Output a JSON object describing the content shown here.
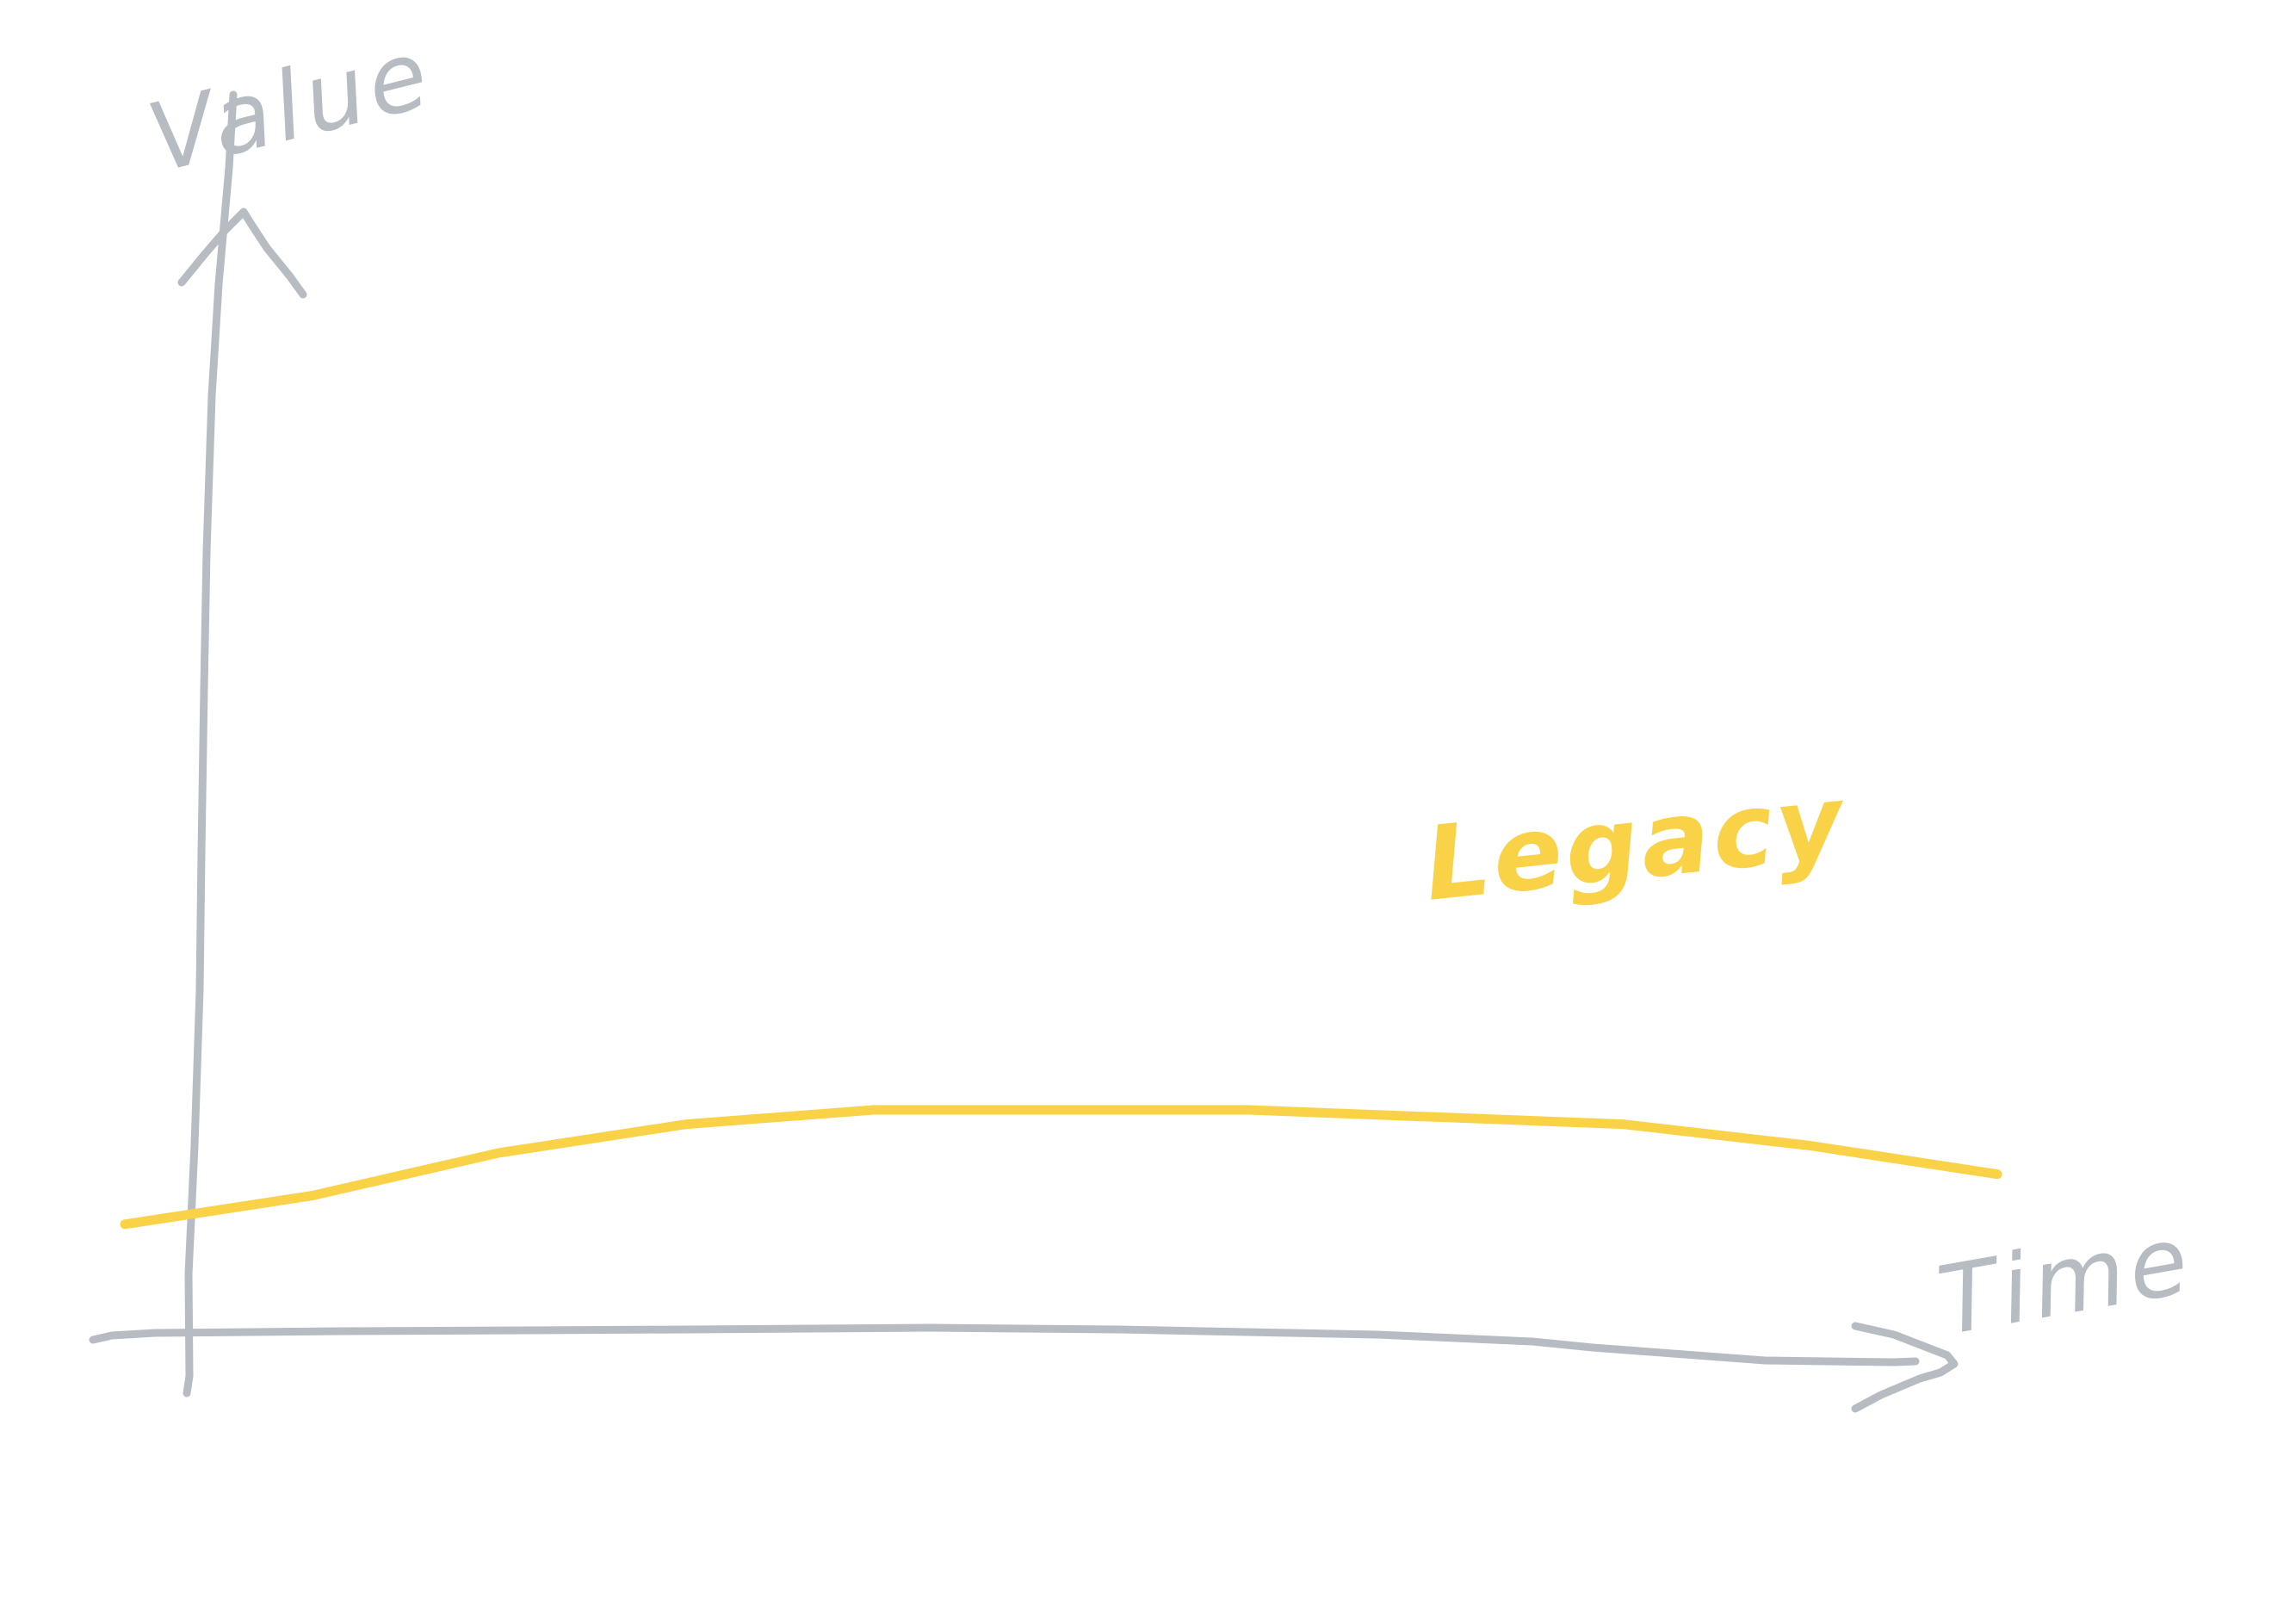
{
  "colors": {
    "axis": "#b7bcc2",
    "series": "#f9d247",
    "background": "#ffffff"
  },
  "chart_data": {
    "type": "line",
    "title": "",
    "xlabel": "Time",
    "ylabel": "Value",
    "grid": false,
    "legend": "none",
    "xlim": [
      0,
      100
    ],
    "ylim": [
      0,
      100
    ],
    "series": [
      {
        "name": "Legacy",
        "x": [
          0,
          10,
          20,
          30,
          40,
          50,
          60,
          70,
          80,
          90,
          100
        ],
        "y": [
          27,
          29,
          32,
          34,
          35,
          35,
          35,
          34.5,
          34,
          32.5,
          30.5
        ]
      }
    ]
  }
}
